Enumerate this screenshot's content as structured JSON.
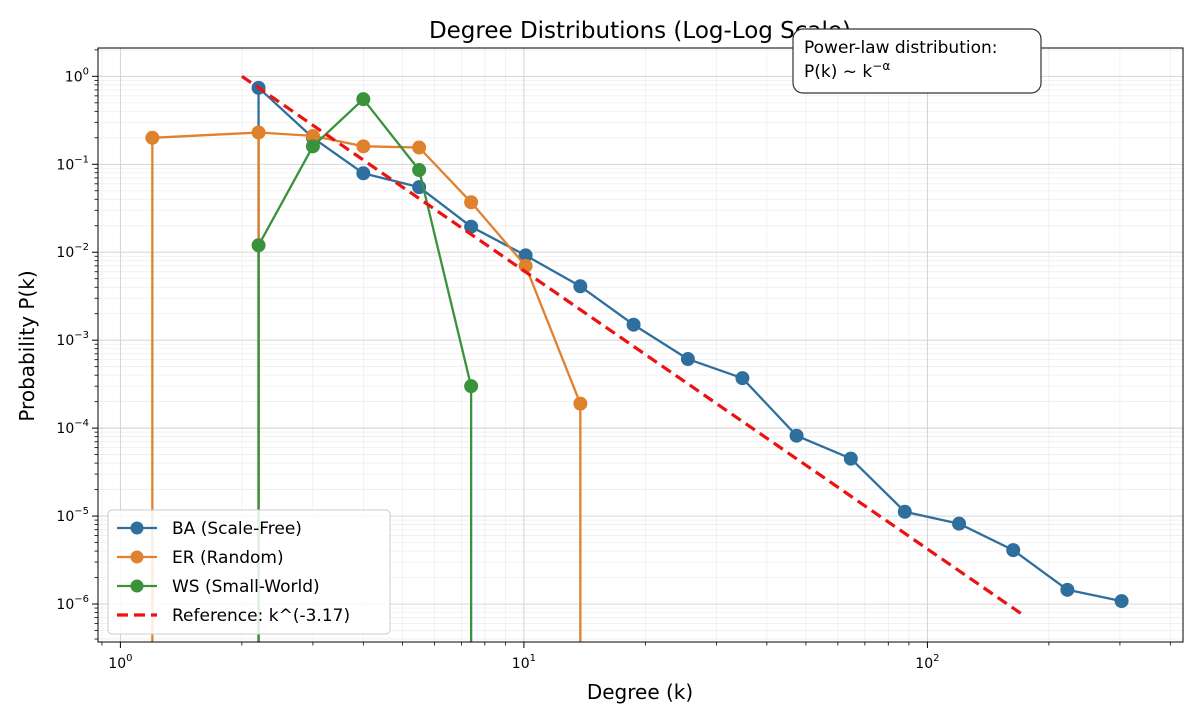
{
  "chart_data": {
    "type": "line",
    "title": "Degree Distributions (Log-Log Scale)",
    "xlabel": "Degree (k)",
    "ylabel": "Probability P(k)",
    "xscale": "log",
    "yscale": "log",
    "xlim": [
      0.88,
      430
    ],
    "ylim": [
      3.7e-07,
      2.1
    ],
    "grid": true,
    "legend_position": "lower-left",
    "x_ticks": [
      {
        "value": 1,
        "base": "10",
        "exp": "0"
      },
      {
        "value": 10,
        "base": "10",
        "exp": "1"
      },
      {
        "value": 100,
        "base": "10",
        "exp": "2"
      }
    ],
    "y_ticks": [
      {
        "value": 1,
        "base": "10",
        "exp": "0"
      },
      {
        "value": 0.1,
        "base": "10",
        "exp": "−1"
      },
      {
        "value": 0.01,
        "base": "10",
        "exp": "−2"
      },
      {
        "value": 0.001,
        "base": "10",
        "exp": "−3"
      },
      {
        "value": 0.0001,
        "base": "10",
        "exp": "−4"
      },
      {
        "value": 1e-05,
        "base": "10",
        "exp": "−5"
      },
      {
        "value": 1e-06,
        "base": "10",
        "exp": "−6"
      }
    ],
    "series": [
      {
        "name": "BA (Scale-Free)",
        "color": "#2e6f9e",
        "x": [
          2.2,
          2.2,
          3.0,
          4.0,
          5.5,
          7.4,
          10.1,
          13.8,
          18.7,
          25.5,
          34.8,
          47.4,
          64.6,
          87.9,
          119.8,
          163.2,
          222.3,
          302.9
        ],
        "y": [
          0.74,
          0.74,
          0.2,
          0.079,
          0.055,
          0.0195,
          0.0092,
          0.0041,
          0.0015,
          0.00061,
          0.00037,
          8.2e-05,
          4.5e-05,
          1.12e-05,
          8.2e-06,
          4.1e-06,
          1.45e-06,
          1.08e-06
        ],
        "show_marker": [
          false,
          true,
          true,
          true,
          true,
          true,
          true,
          true,
          true,
          true,
          true,
          true,
          true,
          true,
          true,
          true,
          true,
          true
        ],
        "to_bottom": [
          true
        ]
      },
      {
        "name": "ER (Random)",
        "color": "#e0812e",
        "x": [
          1.2,
          1.2,
          2.2,
          2.2,
          3.0,
          4.0,
          5.5,
          7.4,
          10.1,
          13.8,
          13.8
        ],
        "y": [
          0.2,
          0.2,
          0.23,
          0.23,
          0.21,
          0.16,
          0.155,
          0.037,
          0.007,
          0.00019,
          0.00019
        ],
        "show_marker": [
          false,
          true,
          false,
          true,
          true,
          true,
          true,
          true,
          true,
          true,
          false
        ],
        "to_bottom": [
          true,
          false,
          true,
          false,
          false,
          false,
          false,
          false,
          false,
          false,
          true
        ]
      },
      {
        "name": "WS (Small-World)",
        "color": "#3a923a",
        "x": [
          2.2,
          2.2,
          3.0,
          4.0,
          5.5,
          7.4,
          7.4
        ],
        "y": [
          0.012,
          0.012,
          0.16,
          0.55,
          0.086,
          0.0003,
          0.0003
        ],
        "show_marker": [
          false,
          true,
          true,
          true,
          true,
          true,
          false
        ],
        "to_bottom": [
          true,
          false,
          false,
          false,
          false,
          false,
          true
        ]
      },
      {
        "name": "Reference: k^(-3.17)",
        "color": "#ee1111",
        "dashed": true,
        "x": [
          2.0,
          175
        ],
        "y": [
          1.0,
          7.2e-07
        ]
      }
    ],
    "annotation": {
      "line1": "Power-law distribution:",
      "line2_prefix": "P(k) ~ k",
      "line2_sup": "−α"
    }
  }
}
